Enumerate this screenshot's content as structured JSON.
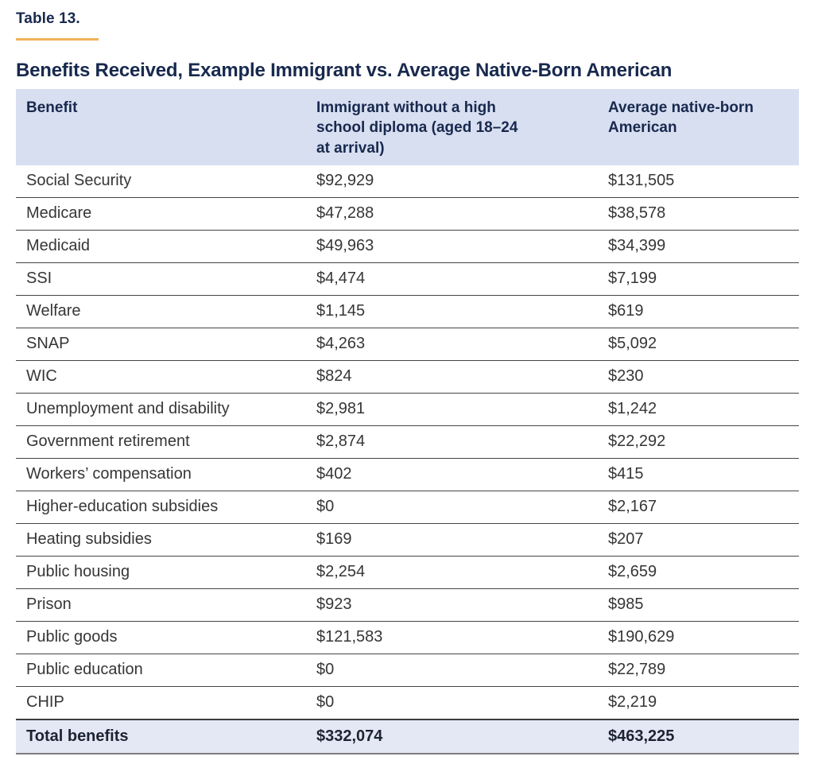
{
  "page": {
    "kicker": "Table 13.",
    "title": "Benefits Received, Example Immigrant vs. Average Native-Born American"
  },
  "table": {
    "columns": [
      "Benefit",
      "Immigrant without a high\nschool diploma (aged 18–24\nat arrival)",
      "Average native-born\nAmerican"
    ],
    "rows": [
      [
        "Social Security",
        "$92,929",
        "$131,505"
      ],
      [
        "Medicare",
        "$47,288",
        "$38,578"
      ],
      [
        "Medicaid",
        "$49,963",
        "$34,399"
      ],
      [
        "SSI",
        "$4,474",
        "$7,199"
      ],
      [
        "Welfare",
        "$1,145",
        "$619"
      ],
      [
        "SNAP",
        "$4,263",
        "$5,092"
      ],
      [
        "WIC",
        "$824",
        "$230"
      ],
      [
        "Unemployment and disability",
        "$2,981",
        "$1,242"
      ],
      [
        "Government retirement",
        "$2,874",
        "$22,292"
      ],
      [
        "Workers’ compensation",
        "$402",
        "$415"
      ],
      [
        "Higher-education subsidies",
        "$0",
        "$2,167"
      ],
      [
        "Heating subsidies",
        "$169",
        "$207"
      ],
      [
        "Public housing",
        "$2,254",
        "$2,659"
      ],
      [
        "Prison",
        "$923",
        "$985"
      ],
      [
        "Public goods",
        "$121,583",
        "$190,629"
      ],
      [
        "Public education",
        "$0",
        "$22,789"
      ],
      [
        "CHIP",
        "$0",
        "$2,219"
      ]
    ],
    "total": [
      "Total benefits",
      "$332,074",
      "$463,225"
    ]
  },
  "colors": {
    "navy": "#18294e",
    "accent_rule": "#f1b157",
    "header_bg": "#d8dff1",
    "total_bg": "#e4e8f4",
    "body_text": "#363636",
    "row_line": "#454545",
    "total_text": "#1c2433"
  }
}
